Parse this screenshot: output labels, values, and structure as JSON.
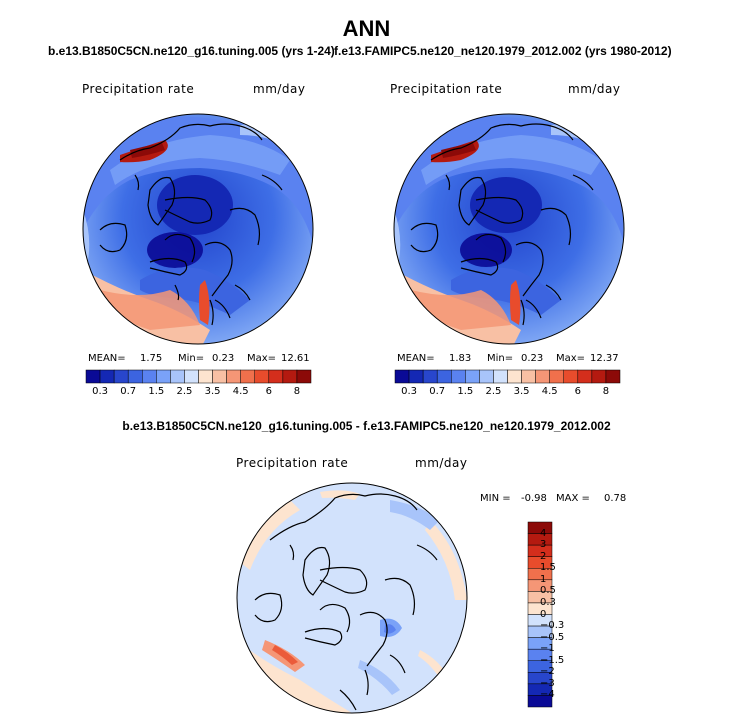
{
  "main_title": "ANN",
  "panels": [
    {
      "title": "b.e13.B1850C5CN.ne120_g16.tuning.005 (yrs 1-24)",
      "variable": "Precipitation rate",
      "units": "mm/day",
      "stats": {
        "mean_label": "MEAN=",
        "mean": "1.75",
        "min_label": "Min=",
        "min": "0.23",
        "max_label": "Max=",
        "max": "12.61"
      }
    },
    {
      "title": "f.e13.FAMIPC5.ne120_ne120.1979_2012.002 (yrs 1980-2012)",
      "variable": "Precipitation rate",
      "units": "mm/day",
      "stats": {
        "mean_label": "MEAN=",
        "mean": "1.83",
        "min_label": "Min=",
        "min": "0.23",
        "max_label": "Max=",
        "max": "12.37"
      }
    }
  ],
  "colorbar_main": {
    "tick_labels": [
      "0.3",
      "0.7",
      "1.5",
      "2.5",
      "3.5",
      "4.5",
      "6",
      "8"
    ],
    "colors": [
      "#0a0a96",
      "#1428b4",
      "#2846cc",
      "#3c64e0",
      "#5a82f0",
      "#7aa2f8",
      "#a8c4fa",
      "#d2e2fc",
      "#fde4cf",
      "#f8c0a4",
      "#f59676",
      "#f0704c",
      "#e84c2c",
      "#d42e1c",
      "#b41a10",
      "#8c0a08"
    ]
  },
  "difference": {
    "title": "b.e13.B1850C5CN.ne120_g16.tuning.005 - f.e13.FAMIPC5.ne120_ne120.1979_2012.002",
    "variable": "Precipitation rate",
    "units": "mm/day",
    "stats": {
      "min_label": "MIN =",
      "min": "-0.98",
      "max_label": "MAX =",
      "max": "0.78"
    },
    "colorbar_ticks": [
      "4",
      "3",
      "2",
      "1.5",
      "1",
      "0.5",
      "0.3",
      "0",
      "−0.3",
      "−0.5",
      "−1",
      "−1.5",
      "−2",
      "−3",
      "−4"
    ],
    "colors": [
      "#8c0a08",
      "#b41a10",
      "#d42e1c",
      "#e84c2c",
      "#f0704c",
      "#f59676",
      "#f8c0a4",
      "#fde4cf",
      "#d2e2fc",
      "#a8c4fa",
      "#7aa2f8",
      "#5a82f0",
      "#3c64e0",
      "#2846cc",
      "#1428b4",
      "#0a0a96"
    ]
  }
}
